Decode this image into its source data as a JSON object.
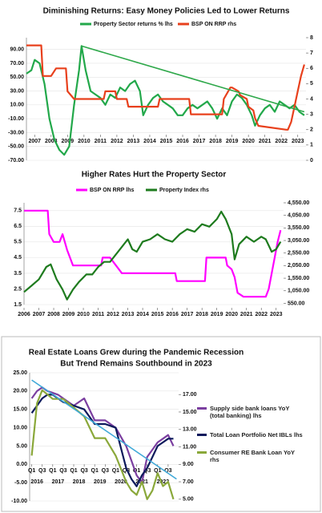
{
  "chart_data": [
    {
      "type": "line",
      "title": "Diminishing Returns: Easy Money Policies Led to Lower Returns",
      "xlim": [
        2006.5,
        2023.5
      ],
      "xticks": [
        2007,
        2008,
        2009,
        2010,
        2011,
        2012,
        2013,
        2014,
        2015,
        2016,
        2017,
        2018,
        2019,
        2020,
        2021,
        2022,
        2023
      ],
      "ylim": [
        -70,
        107
      ],
      "yticks": [
        {
          "value": 90,
          "label": "90.00"
        },
        {
          "value": 70,
          "label": "70.00"
        },
        {
          "value": 50,
          "label": "50.00"
        },
        {
          "value": 30,
          "label": "30.00"
        },
        {
          "value": 10,
          "label": "10.00"
        },
        {
          "value": -10,
          "label": "-10.00"
        },
        {
          "value": -30,
          "label": "-30.00"
        },
        {
          "value": -50,
          "label": "-50.00"
        },
        {
          "value": -70,
          "label": "-70.00"
        }
      ],
      "y2lim": [
        0,
        8
      ],
      "y2ticks": [
        0,
        1,
        2,
        3,
        4,
        5,
        6,
        7,
        8
      ],
      "grid": true,
      "series": [
        {
          "name": "Property Sector returns % lhs",
          "color": "#22a84a",
          "x": [
            2006.5,
            2006.8,
            2007.0,
            2007.3,
            2007.6,
            2007.9,
            2008.2,
            2008.5,
            2008.8,
            2009.1,
            2009.4,
            2009.7,
            2009.85,
            2010.1,
            2010.4,
            2010.7,
            2011.0,
            2011.3,
            2011.6,
            2011.9,
            2012.2,
            2012.5,
            2012.8,
            2013.1,
            2013.4,
            2013.6,
            2013.9,
            2014.2,
            2014.5,
            2014.8,
            2015.1,
            2015.4,
            2015.7,
            2016.0,
            2016.3,
            2016.6,
            2016.9,
            2017.2,
            2017.5,
            2017.8,
            2018.1,
            2018.4,
            2018.7,
            2019.0,
            2019.3,
            2019.6,
            2019.9,
            2020.2,
            2020.4,
            2020.7,
            2021.0,
            2021.3,
            2021.6,
            2021.9,
            2022.2,
            2022.5,
            2022.8,
            2023.1,
            2023.4
          ],
          "values": [
            55,
            60,
            75,
            70,
            40,
            -10,
            -40,
            -55,
            -62,
            -50,
            10,
            60,
            95,
            60,
            30,
            25,
            20,
            10,
            25,
            20,
            35,
            30,
            40,
            45,
            30,
            -5,
            10,
            20,
            25,
            15,
            10,
            5,
            -5,
            -5,
            5,
            10,
            5,
            10,
            15,
            5,
            -10,
            5,
            -5,
            15,
            25,
            20,
            10,
            -5,
            -20,
            -5,
            5,
            10,
            0,
            15,
            10,
            5,
            10,
            0,
            -5
          ]
        },
        {
          "name": "BSP ON RRP rhs",
          "color": "#e8401c",
          "axis": "y2",
          "x": [
            2006.5,
            2007.4,
            2007.5,
            2008.0,
            2008.3,
            2008.9,
            2009.0,
            2009.4,
            2011.2,
            2011.3,
            2011.9,
            2012.0,
            2012.6,
            2012.7,
            2014.5,
            2014.6,
            2016.4,
            2016.5,
            2018.4,
            2018.5,
            2018.9,
            2019.0,
            2019.4,
            2019.5,
            2019.9,
            2020.0,
            2020.3,
            2020.4,
            2020.6,
            2022.3,
            2022.4,
            2022.6,
            2022.8,
            2023.0,
            2023.2,
            2023.4
          ],
          "values": [
            7.5,
            7.5,
            5.5,
            5.5,
            6.0,
            6.0,
            4.5,
            4.0,
            4.0,
            4.5,
            4.5,
            4.0,
            4.0,
            3.5,
            3.5,
            4.0,
            4.0,
            3.0,
            3.0,
            4.0,
            4.75,
            4.75,
            4.5,
            4.25,
            4.0,
            3.5,
            3.25,
            2.75,
            2.25,
            2.0,
            2.0,
            2.5,
            3.5,
            4.5,
            5.5,
            6.25
          ]
        }
      ],
      "trend": {
        "color": "#2ea84a",
        "x": [
          2009.85,
          2023.4
        ],
        "values": [
          95,
          0
        ]
      }
    },
    {
      "type": "line",
      "title": "Higher Rates Hurt the Property Sector",
      "xlim": [
        2006,
        2023.5
      ],
      "xticks": [
        2006,
        2007,
        2008,
        2009,
        2010,
        2011,
        2012,
        2013,
        2014,
        2015,
        2016,
        2017,
        2018,
        2019,
        2020,
        2021,
        2022,
        2023
      ],
      "ylim": [
        1.5,
        8
      ],
      "yticks": [
        1.5,
        2.5,
        3.5,
        4.5,
        5.5,
        6.5,
        7.5
      ],
      "y2lim": [
        500,
        4550
      ],
      "y2ticks": [
        {
          "value": 550,
          "label": "550.00"
        },
        {
          "value": 1050,
          "label": "1,050.00"
        },
        {
          "value": 1550,
          "label": "1,550.00"
        },
        {
          "value": 2050,
          "label": "2,050.00"
        },
        {
          "value": 2550,
          "label": "2,550.00"
        },
        {
          "value": 3050,
          "label": "3,050.00"
        },
        {
          "value": 3550,
          "label": "3,550.00"
        },
        {
          "value": 4050,
          "label": "4,050.00"
        },
        {
          "value": 4550,
          "label": "4,550.00"
        }
      ],
      "grid": true,
      "series": [
        {
          "name": "BSP ON RRP lhs",
          "color": "#ff00ff",
          "x": [
            2006,
            2007.6,
            2007.7,
            2008.0,
            2008.4,
            2008.6,
            2008.9,
            2009.3,
            2011.2,
            2011.3,
            2011.8,
            2012.2,
            2012.6,
            2016.2,
            2016.3,
            2018.2,
            2018.3,
            2019.6,
            2019.7,
            2020.0,
            2020.2,
            2020.4,
            2020.8,
            2022.3,
            2022.5,
            2022.7,
            2022.9,
            2023.1,
            2023.3
          ],
          "values": [
            7.5,
            7.5,
            6.0,
            5.5,
            5.5,
            6.0,
            5.0,
            4.0,
            4.0,
            4.5,
            4.5,
            4.0,
            3.5,
            3.5,
            3.0,
            3.0,
            4.5,
            4.5,
            4.0,
            3.75,
            3.25,
            2.25,
            2.0,
            2.0,
            2.5,
            3.5,
            4.5,
            5.5,
            6.25
          ]
        },
        {
          "name": "Property Index rhs",
          "color": "#1e7b1e",
          "axis": "y2",
          "x": [
            2006,
            2006.5,
            2007,
            2007.5,
            2007.8,
            2008.2,
            2008.6,
            2008.9,
            2009.3,
            2009.7,
            2010.2,
            2010.6,
            2011.0,
            2011.4,
            2011.8,
            2012.2,
            2012.6,
            2013.0,
            2013.3,
            2013.6,
            2014.0,
            2014.5,
            2015.0,
            2015.5,
            2016.0,
            2016.5,
            2017.0,
            2017.5,
            2018.0,
            2018.5,
            2019.0,
            2019.3,
            2019.6,
            2020.0,
            2020.2,
            2020.5,
            2021.0,
            2021.5,
            2022.0,
            2022.3,
            2022.7,
            2023.0,
            2023.3
          ],
          "values": [
            1000,
            1250,
            1500,
            2000,
            2100,
            1500,
            1100,
            700,
            1100,
            1400,
            1700,
            1700,
            2000,
            2200,
            2200,
            2500,
            2800,
            3100,
            2700,
            2600,
            3000,
            3100,
            3300,
            3100,
            3000,
            3300,
            3500,
            3400,
            3700,
            3600,
            3900,
            4200,
            3900,
            3300,
            2300,
            2900,
            3200,
            3000,
            3200,
            3100,
            2600,
            2700,
            3000
          ]
        }
      ]
    },
    {
      "type": "line",
      "title": "Real Estate Loans Grew during the Pandemic Recession",
      "subtitle": "But Trend  Remains Southbound in 2023",
      "xlim": [
        2015.9,
        2023.0
      ],
      "xticks": [
        {
          "value": 2016,
          "label": "Q1"
        },
        {
          "value": 2016.5,
          "label": "Q3"
        },
        {
          "value": 2017,
          "label": "Q1"
        },
        {
          "value": 2017.5,
          "label": "Q3"
        },
        {
          "value": 2018,
          "label": "Q1"
        },
        {
          "value": 2018.5,
          "label": "Q3"
        },
        {
          "value": 2019,
          "label": "Q1"
        },
        {
          "value": 2019.5,
          "label": "Q3"
        },
        {
          "value": 2020,
          "label": "Q1"
        },
        {
          "value": 2020.5,
          "label": "Q3"
        },
        {
          "value": 2021,
          "label": "Q1"
        },
        {
          "value": 2021.5,
          "label": "Q3"
        },
        {
          "value": 2022,
          "label": "Q1"
        },
        {
          "value": 2022.5,
          "label": "Q3"
        }
      ],
      "xyears": [
        2016,
        2017,
        2018,
        2019,
        2020,
        2021,
        2022
      ],
      "ylim": [
        -10,
        25
      ],
      "yticks": [
        {
          "value": 25,
          "label": "25.00"
        },
        {
          "value": 20,
          "label": "20.00"
        },
        {
          "value": 15,
          "label": "15.00"
        },
        {
          "value": 10,
          "label": "10.00"
        },
        {
          "value": 5,
          "label": "5.00"
        },
        {
          "value": 0,
          "label": "0.00"
        },
        {
          "value": -5,
          "label": "-5.00"
        },
        {
          "value": -10,
          "label": "-10.00"
        }
      ],
      "y2lim": [
        4.8,
        19.5
      ],
      "y2ticks": [
        {
          "value": 5,
          "label": "5.00"
        },
        {
          "value": 7,
          "label": "7.00"
        },
        {
          "value": 9,
          "label": "9.00"
        },
        {
          "value": 11,
          "label": "11.00"
        },
        {
          "value": 13,
          "label": "13.00"
        },
        {
          "value": 15,
          "label": "15.00"
        },
        {
          "value": 17,
          "label": "17.00"
        }
      ],
      "grid": true,
      "series": [
        {
          "name": "Supply side bank loans YoY (total banking) lhs",
          "color": "#7b3fa0",
          "x": [
            2016,
            2016.25,
            2016.5,
            2016.75,
            2017,
            2017.25,
            2017.5,
            2018,
            2018.5,
            2019,
            2019.5,
            2020,
            2020.5,
            2020.75,
            2021,
            2021.25,
            2021.5,
            2021.75,
            2022,
            2022.25,
            2022.5,
            2022.75
          ],
          "values": [
            18,
            20,
            21,
            20,
            19.5,
            19,
            18,
            16,
            18,
            12,
            12,
            10,
            5,
            1,
            -3,
            -5,
            2,
            4,
            6,
            7,
            8,
            5
          ]
        },
        {
          "name": "Total Loan Portfolio Net IBLs lhs",
          "color": "#0d1a5c",
          "x": [
            2016,
            2016.25,
            2016.5,
            2016.75,
            2017,
            2017.25,
            2017.5,
            2018,
            2018.5,
            2019,
            2019.5,
            2020,
            2020.5,
            2020.75,
            2021,
            2021.25,
            2021.5,
            2021.75,
            2022,
            2022.25,
            2022.5,
            2022.75
          ],
          "values": [
            14,
            16,
            18,
            19,
            19,
            18,
            17,
            16,
            15,
            11,
            11,
            10,
            -1,
            -4,
            -6,
            -3,
            -1,
            2,
            5,
            6,
            7,
            7
          ]
        },
        {
          "name": "Consumer RE Bank Loan YoY rhs",
          "color": "#8aa83a",
          "axis": "y2",
          "x": [
            2016,
            2016.25,
            2016.5,
            2016.75,
            2017,
            2017.25,
            2017.5,
            2018,
            2018.5,
            2019,
            2019.5,
            2020,
            2020.5,
            2020.75,
            2021,
            2021.25,
            2021.5,
            2021.75,
            2022,
            2022.25,
            2022.5,
            2022.75
          ],
          "values": [
            10,
            16,
            17.5,
            17,
            16.5,
            16.5,
            16.5,
            15.5,
            14.5,
            12,
            12,
            10,
            7,
            6,
            5.5,
            7,
            5,
            6,
            8,
            6.5,
            7,
            5
          ]
        }
      ],
      "trend": {
        "color": "#3fa9d8",
        "x": [
          2016,
          2022.9
        ],
        "values": [
          23,
          -4
        ]
      }
    }
  ]
}
